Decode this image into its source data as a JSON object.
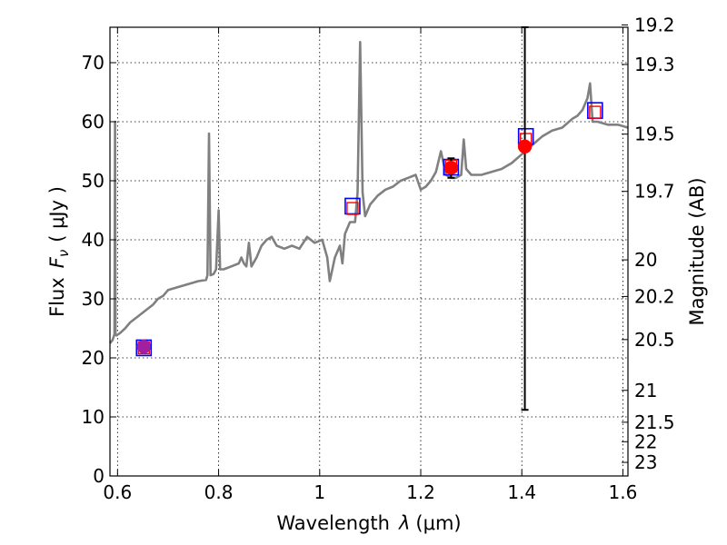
{
  "chart_data": {
    "type": "line",
    "xlabel_prefix": "Wavelength",
    "xlabel_symbol": "λ",
    "xlabel_unit": "(μm)",
    "ylabel_prefix": "Flux",
    "ylabel_symbol": "F",
    "ylabel_subscript": "ν",
    "ylabel_unit": "( μJy )",
    "y2label": "Magnitude (AB)",
    "xlim": [
      0.585,
      1.61
    ],
    "ylim": [
      0,
      76
    ],
    "xticks": [
      0.6,
      0.8,
      1.0,
      1.2,
      1.4,
      1.6
    ],
    "xtick_labels": [
      "0.6",
      "0.8",
      "1",
      "1.2",
      "1.4",
      "1.6"
    ],
    "yticks": [
      0,
      10,
      20,
      30,
      40,
      50,
      60,
      70
    ],
    "ytick_labels": [
      "0",
      "10",
      "20",
      "30",
      "40",
      "50",
      "60",
      "70"
    ],
    "y2ticks": [
      {
        "label": "19.2",
        "flux": 76.4
      },
      {
        "label": "19.3",
        "flux": 69.7
      },
      {
        "label": "19.5",
        "flux": 57.9
      },
      {
        "label": "19.7",
        "flux": 48.2
      },
      {
        "label": "20",
        "flux": 36.6
      },
      {
        "label": "20.2",
        "flux": 30.4
      },
      {
        "label": "20.5",
        "flux": 23.1
      },
      {
        "label": "21",
        "flux": 14.5
      },
      {
        "label": "21.5",
        "flux": 9.1
      },
      {
        "label": "22",
        "flux": 5.8
      },
      {
        "label": "23",
        "flux": 2.3
      }
    ],
    "grid": true,
    "spectrum_color": "#808080",
    "spectrum": [
      [
        0.585,
        22.5
      ],
      [
        0.59,
        23.0
      ],
      [
        0.594,
        24.0
      ],
      [
        0.595,
        60.0
      ],
      [
        0.596,
        24.0
      ],
      [
        0.598,
        23.8
      ],
      [
        0.605,
        24.2
      ],
      [
        0.615,
        25.0
      ],
      [
        0.625,
        26.0
      ],
      [
        0.64,
        27.0
      ],
      [
        0.655,
        28.0
      ],
      [
        0.67,
        29.0
      ],
      [
        0.68,
        30.0
      ],
      [
        0.69,
        30.5
      ],
      [
        0.7,
        31.5
      ],
      [
        0.72,
        32.0
      ],
      [
        0.74,
        32.5
      ],
      [
        0.76,
        33.0
      ],
      [
        0.775,
        33.2
      ],
      [
        0.778,
        34.0
      ],
      [
        0.781,
        58.0
      ],
      [
        0.784,
        34.0
      ],
      [
        0.79,
        34.2
      ],
      [
        0.795,
        35.0
      ],
      [
        0.8,
        45.0
      ],
      [
        0.803,
        35.0
      ],
      [
        0.81,
        35.0
      ],
      [
        0.825,
        35.5
      ],
      [
        0.84,
        36.0
      ],
      [
        0.845,
        37.0
      ],
      [
        0.85,
        36.0
      ],
      [
        0.855,
        35.5
      ],
      [
        0.86,
        39.5
      ],
      [
        0.865,
        35.5
      ],
      [
        0.875,
        37.0
      ],
      [
        0.885,
        39.0
      ],
      [
        0.895,
        40.0
      ],
      [
        0.905,
        40.5
      ],
      [
        0.915,
        39.0
      ],
      [
        0.93,
        38.5
      ],
      [
        0.945,
        39.0
      ],
      [
        0.96,
        38.5
      ],
      [
        0.975,
        40.5
      ],
      [
        0.99,
        39.5
      ],
      [
        1.005,
        40.0
      ],
      [
        1.015,
        37.0
      ],
      [
        1.02,
        33.0
      ],
      [
        1.03,
        37.0
      ],
      [
        1.04,
        39.0
      ],
      [
        1.045,
        36.0
      ],
      [
        1.05,
        41.0
      ],
      [
        1.06,
        43.0
      ],
      [
        1.07,
        43.0
      ],
      [
        1.075,
        48.0
      ],
      [
        1.08,
        73.5
      ],
      [
        1.085,
        48.0
      ],
      [
        1.09,
        44.0
      ],
      [
        1.1,
        46.0
      ],
      [
        1.115,
        47.5
      ],
      [
        1.13,
        48.5
      ],
      [
        1.145,
        49.0
      ],
      [
        1.16,
        50.0
      ],
      [
        1.175,
        50.5
      ],
      [
        1.19,
        51.0
      ],
      [
        1.2,
        48.5
      ],
      [
        1.21,
        49.0
      ],
      [
        1.22,
        50.0
      ],
      [
        1.23,
        51.5
      ],
      [
        1.24,
        55.0
      ],
      [
        1.25,
        51.0
      ],
      [
        1.26,
        50.5
      ],
      [
        1.27,
        50.5
      ],
      [
        1.28,
        51.0
      ],
      [
        1.285,
        57.0
      ],
      [
        1.29,
        52.0
      ],
      [
        1.3,
        51.0
      ],
      [
        1.32,
        51.0
      ],
      [
        1.34,
        51.5
      ],
      [
        1.36,
        52.0
      ],
      [
        1.38,
        53.0
      ],
      [
        1.4,
        54.5
      ],
      [
        1.42,
        56.0
      ],
      [
        1.44,
        57.5
      ],
      [
        1.46,
        58.5
      ],
      [
        1.48,
        59.0
      ],
      [
        1.5,
        60.5
      ],
      [
        1.51,
        61.0
      ],
      [
        1.52,
        62.0
      ],
      [
        1.53,
        64.0
      ],
      [
        1.535,
        66.5
      ],
      [
        1.54,
        60.0
      ],
      [
        1.55,
        60.0
      ],
      [
        1.57,
        59.5
      ],
      [
        1.59,
        59.5
      ],
      [
        1.61,
        59.0
      ]
    ],
    "model_points_red": [
      {
        "x": 0.652,
        "y": 21.7
      },
      {
        "x": 1.065,
        "y": 45.3
      },
      {
        "x": 1.26,
        "y": 52.5
      },
      {
        "x": 1.408,
        "y": 57.0
      },
      {
        "x": 1.545,
        "y": 61.6
      }
    ],
    "model_points_blue": [
      {
        "x": 0.652,
        "y": 21.7
      },
      {
        "x": 1.065,
        "y": 45.7
      },
      {
        "x": 1.26,
        "y": 52.3
      },
      {
        "x": 1.408,
        "y": 57.5
      },
      {
        "x": 1.545,
        "y": 61.9
      }
    ],
    "observations": [
      {
        "x": 0.652,
        "y": 21.9,
        "err_low": 21.0,
        "err_high": 22.7
      },
      {
        "x": 1.26,
        "y": 52.2,
        "err_low": 50.5,
        "err_high": 53.8
      },
      {
        "x": 1.406,
        "y": 55.8,
        "err_low": 11.2,
        "err_high": 76.0
      }
    ],
    "observation_color": "#ff0000",
    "red_square_color": "#ff0000",
    "blue_square_color": "#0000ff",
    "purple_point_color": "#a020a0"
  }
}
